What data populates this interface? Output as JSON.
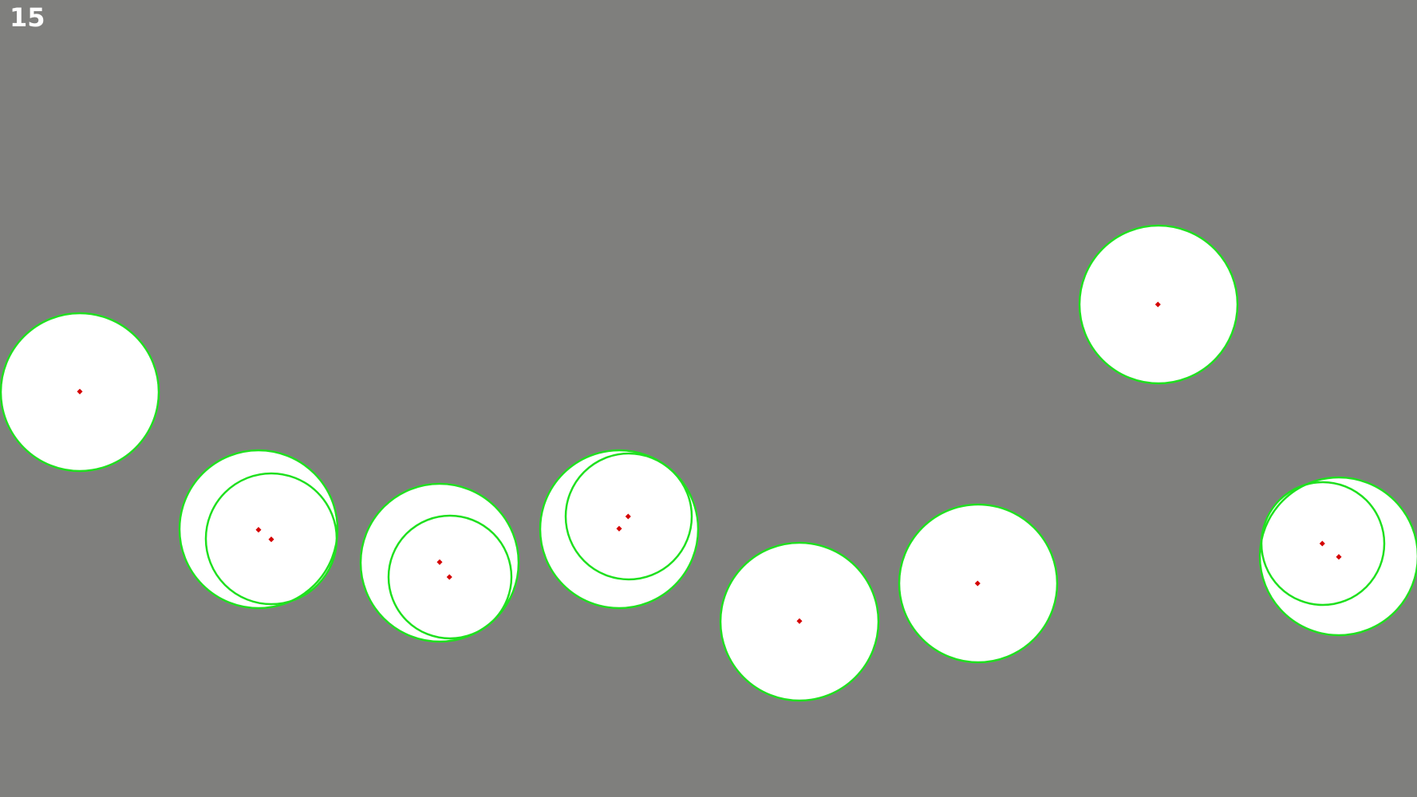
{
  "counter": "15",
  "colors": {
    "background": "#7f7f7d",
    "fill": "#ffffff",
    "outline": "#1fe01f",
    "center_marker": "#d40000",
    "counter_text": "#ffffff"
  }
}
